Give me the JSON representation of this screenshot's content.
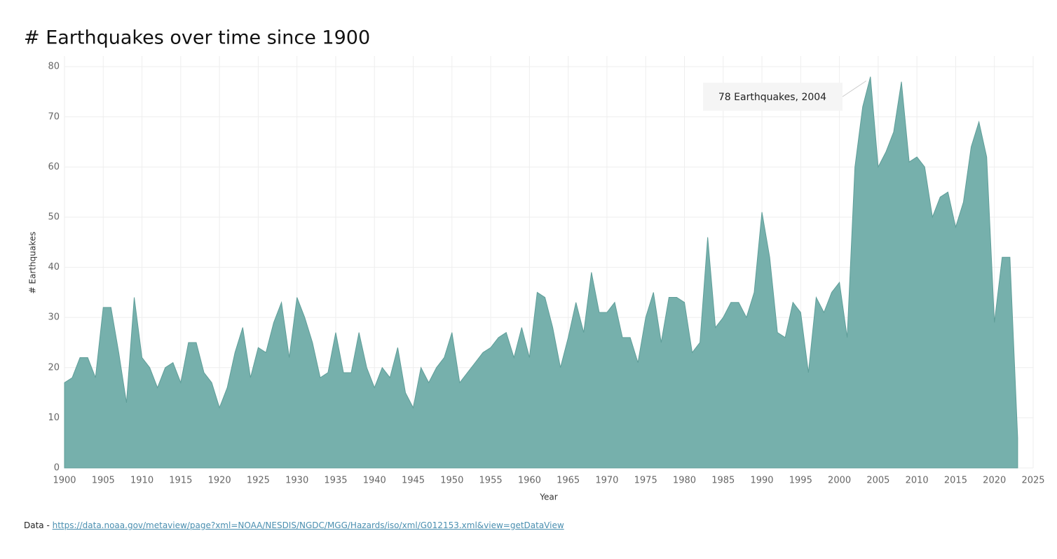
{
  "chart_data": {
    "type": "area",
    "title": "# Earthquakes over time since 1900",
    "x_label": "Year",
    "y_label": "# Earthquakes",
    "x": [
      1900,
      1901,
      1902,
      1903,
      1904,
      1905,
      1906,
      1907,
      1908,
      1909,
      1910,
      1911,
      1912,
      1913,
      1914,
      1915,
      1916,
      1917,
      1918,
      1919,
      1920,
      1921,
      1922,
      1923,
      1924,
      1925,
      1926,
      1927,
      1928,
      1929,
      1930,
      1931,
      1932,
      1933,
      1934,
      1935,
      1936,
      1937,
      1938,
      1939,
      1940,
      1941,
      1942,
      1943,
      1944,
      1945,
      1946,
      1947,
      1948,
      1949,
      1950,
      1951,
      1952,
      1953,
      1954,
      1955,
      1956,
      1957,
      1958,
      1959,
      1960,
      1961,
      1962,
      1963,
      1964,
      1965,
      1966,
      1967,
      1968,
      1969,
      1970,
      1971,
      1972,
      1973,
      1974,
      1975,
      1976,
      1977,
      1978,
      1979,
      1980,
      1981,
      1982,
      1983,
      1984,
      1985,
      1986,
      1987,
      1988,
      1989,
      1990,
      1991,
      1992,
      1993,
      1994,
      1995,
      1996,
      1997,
      1998,
      1999,
      2000,
      2001,
      2002,
      2003,
      2004,
      2005,
      2006,
      2007,
      2008,
      2009,
      2010,
      2011,
      2012,
      2013,
      2014,
      2015,
      2016,
      2017,
      2018,
      2019,
      2020,
      2021,
      2022,
      2023
    ],
    "series": [
      {
        "name": "# Earthquakes",
        "color": "#76b0ac",
        "values": [
          17,
          18,
          22,
          22,
          18,
          32,
          32,
          23,
          13,
          34,
          22,
          20,
          16,
          20,
          21,
          17,
          25,
          25,
          19,
          17,
          12,
          16,
          23,
          28,
          18,
          24,
          23,
          29,
          33,
          22,
          34,
          30,
          25,
          18,
          19,
          27,
          19,
          19,
          27,
          20,
          16,
          20,
          18,
          24,
          15,
          12,
          20,
          17,
          20,
          22,
          27,
          17,
          19,
          21,
          23,
          24,
          26,
          27,
          22,
          28,
          22,
          35,
          34,
          28,
          20,
          26,
          33,
          27,
          39,
          31,
          31,
          33,
          26,
          26,
          21,
          30,
          35,
          25,
          34,
          34,
          33,
          23,
          25,
          46,
          28,
          30,
          33,
          33,
          30,
          35,
          51,
          42,
          27,
          26,
          33,
          31,
          19,
          34,
          31,
          35,
          37,
          26,
          60,
          72,
          78,
          60,
          63,
          67,
          77,
          61,
          62,
          60,
          50,
          54,
          55,
          48,
          53,
          64,
          69,
          62,
          29,
          42,
          42,
          6
        ]
      }
    ],
    "xlim": [
      1900,
      2025
    ],
    "ylim": [
      0,
      81
    ],
    "xticks": [
      1900,
      1905,
      1910,
      1915,
      1920,
      1925,
      1930,
      1935,
      1940,
      1945,
      1950,
      1955,
      1960,
      1965,
      1970,
      1975,
      1980,
      1985,
      1990,
      1995,
      2000,
      2005,
      2010,
      2015,
      2020,
      2025
    ],
    "yticks": [
      0,
      10,
      20,
      30,
      40,
      50,
      60,
      70,
      80
    ],
    "grid": true,
    "annotation": {
      "text": "78 Earthquakes, 2004",
      "x": 2004,
      "y": 78
    }
  },
  "footer": {
    "label": "Data -",
    "link": "https://data.noaa.gov/metaview/page?xml=NOAA/NESDIS/NGDC/MGG/Hazards/iso/xml/G012153.xml&view=getDataView"
  }
}
